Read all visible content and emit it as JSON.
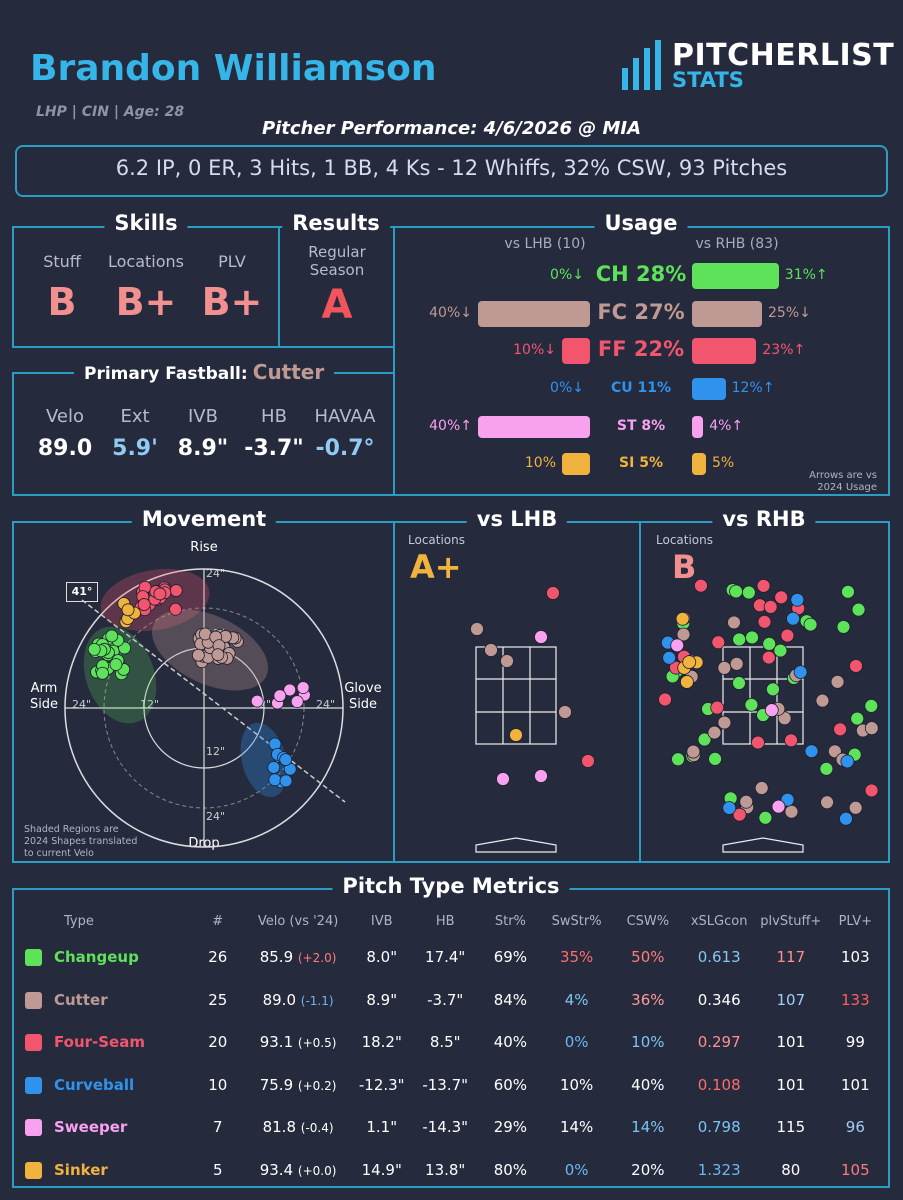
{
  "header": {
    "player_name": "Brandon Williamson",
    "bio": "LHP | CIN | Age: 28",
    "logo_top": "PITCHERLIST",
    "logo_bottom": "STATS",
    "game_title": "Pitcher Performance: 4/6/2026 @ MIA",
    "game_line": "6.2 IP, 0 ER, 3 Hits, 1 BB, 4 Ks - 12 Whiffs, 32% CSW, 93 Pitches"
  },
  "skills": {
    "title": "Skills",
    "items": [
      {
        "label": "Stuff",
        "grade": "B"
      },
      {
        "label": "Locations",
        "grade": "B+"
      },
      {
        "label": "PLV",
        "grade": "B+"
      }
    ]
  },
  "results": {
    "title": "Results",
    "label_line1": "Regular",
    "label_line2": "Season",
    "grade": "A"
  },
  "fastball": {
    "title": "Primary Fastball:",
    "type": "Cutter",
    "metrics": [
      {
        "label": "Velo",
        "value": "89.0"
      },
      {
        "label": "Ext",
        "value": "5.9'"
      },
      {
        "label": "IVB",
        "value": "8.9\""
      },
      {
        "label": "HB",
        "value": "-3.7\""
      },
      {
        "label": "HAVAA",
        "value": "-0.7°"
      }
    ]
  },
  "usage": {
    "title": "Usage",
    "lhb_header": "vs LHB (10)",
    "rhb_header": "vs RHB (83)",
    "note_line1": "Arrows are vs",
    "note_line2": "2024 Usage",
    "rows": [
      {
        "label": "CH 28%",
        "lhb": 0,
        "lhb_text": "0%↓",
        "rhb": 31,
        "rhb_text": "31%↑",
        "color": "#5ee25a"
      },
      {
        "label": "FC 27%",
        "lhb": 40,
        "lhb_text": "40%↓",
        "rhb": 25,
        "rhb_text": "25%↓",
        "color": "#bf9a94"
      },
      {
        "label": "FF 22%",
        "lhb": 10,
        "lhb_text": "10%↓",
        "rhb": 23,
        "rhb_text": "23%↑",
        "color": "#f2566e"
      },
      {
        "label": "CU 11%",
        "lhb": 0,
        "lhb_text": "0%↓",
        "rhb": 12,
        "rhb_text": "12%↑",
        "color": "#2f93ee"
      },
      {
        "label": "ST 8%",
        "lhb": 40,
        "lhb_text": "40%↑",
        "rhb": 4,
        "rhb_text": "4%↑",
        "color": "#f7a1ef"
      },
      {
        "label": "SI 5%",
        "lhb": 10,
        "lhb_text": "10%",
        "rhb": 5,
        "rhb_text": "5%",
        "color": "#f0b33d"
      }
    ]
  },
  "movement": {
    "title": "Movement",
    "rise": "Rise",
    "drop": "Drop",
    "arm_line1": "Arm",
    "arm_line2": "Side",
    "glove_line1": "Glove",
    "glove_line2": "Side",
    "ring_labels": [
      "24\"",
      "12\"",
      "12\"",
      "24\"",
      "12\"",
      "24\"",
      "12\"",
      "24\""
    ],
    "angle_label": "41°",
    "note_line1": "Shaded Regions are",
    "note_line2": "2024 Shapes translated",
    "note_line3": "to current Velo"
  },
  "vs_lhb": {
    "title": "vs LHB",
    "loc_label": "Locations",
    "grade": "A+"
  },
  "vs_rhb": {
    "title": "vs RHB",
    "loc_label": "Locations",
    "grade": "B"
  },
  "metrics": {
    "title": "Pitch Type Metrics",
    "headers": [
      "Type",
      "#",
      "Velo (vs '24)",
      "IVB",
      "HB",
      "Str%",
      "SwStr%",
      "CSW%",
      "xSLGcon",
      "plvStuff+",
      "PLV+"
    ],
    "rows": [
      {
        "type": "Changeup",
        "color": "#5ee25a",
        "n": "26",
        "velo": "85.9",
        "velo_diff": "(+2.0)",
        "velo_diff_color": "#ff7b7b",
        "ivb": "8.0\"",
        "hb": "17.4\"",
        "str": "69%",
        "str_color": "#ffffff",
        "swstr": "35%",
        "swstr_color": "#ff6d6d",
        "csw": "50%",
        "csw_color": "#ff7b7b",
        "xslg": "0.613",
        "xslg_color": "#85c6f2",
        "stuff": "117",
        "stuff_color": "#ff8f8f",
        "plv": "103",
        "plv_color": "#ffffff"
      },
      {
        "type": "Cutter",
        "color": "#bf9a94",
        "n": "25",
        "velo": "89.0",
        "velo_diff": "(-1.1)",
        "velo_diff_color": "#6cb7f0",
        "ivb": "8.9\"",
        "hb": "-3.7\"",
        "str": "84%",
        "str_color": "#ffffff",
        "swstr": "4%",
        "swstr_color": "#7cc4f2",
        "csw": "36%",
        "csw_color": "#ff9a9a",
        "xslg": "0.346",
        "xslg_color": "#ffffff",
        "stuff": "107",
        "stuff_color": "#9fd0f4",
        "plv": "133",
        "plv_color": "#ff5c5c"
      },
      {
        "type": "Four-Seam",
        "color": "#f2566e",
        "n": "20",
        "velo": "93.1",
        "velo_diff": "(+0.5)",
        "velo_diff_color": "#ffffff",
        "ivb": "18.2\"",
        "hb": "8.5\"",
        "str": "40%",
        "str_color": "#ffffff",
        "swstr": "0%",
        "swstr_color": "#6cb7f0",
        "csw": "10%",
        "csw_color": "#7cc4f2",
        "xslg": "0.297",
        "xslg_color": "#ff8f8f",
        "stuff": "101",
        "stuff_color": "#ffffff",
        "plv": "99",
        "plv_color": "#ffffff"
      },
      {
        "type": "Curveball",
        "color": "#2f93ee",
        "n": "10",
        "velo": "75.9",
        "velo_diff": "(+0.2)",
        "velo_diff_color": "#ffffff",
        "ivb": "-12.3\"",
        "hb": "-13.7\"",
        "str": "60%",
        "str_color": "#ffffff",
        "swstr": "10%",
        "swstr_color": "#ffffff",
        "csw": "40%",
        "csw_color": "#ffffff",
        "xslg": "0.108",
        "xslg_color": "#ff6d6d",
        "stuff": "101",
        "stuff_color": "#ffffff",
        "plv": "101",
        "plv_color": "#ffffff"
      },
      {
        "type": "Sweeper",
        "color": "#f7a1ef",
        "n": "7",
        "velo": "81.8",
        "velo_diff": "(-0.4)",
        "velo_diff_color": "#ffffff",
        "ivb": "1.1\"",
        "hb": "-14.3\"",
        "str": "29%",
        "str_color": "#ffffff",
        "swstr": "14%",
        "swstr_color": "#ffffff",
        "csw": "14%",
        "csw_color": "#7cc4f2",
        "xslg": "0.798",
        "xslg_color": "#7cc4f2",
        "stuff": "115",
        "stuff_color": "#ffffff",
        "plv": "96",
        "plv_color": "#9fd0f4"
      },
      {
        "type": "Sinker",
        "color": "#f0b33d",
        "n": "5",
        "velo": "93.4",
        "velo_diff": "(+0.0)",
        "velo_diff_color": "#ffffff",
        "ivb": "14.9\"",
        "hb": "13.8\"",
        "str": "80%",
        "str_color": "#ffffff",
        "swstr": "0%",
        "swstr_color": "#6cb7f0",
        "csw": "20%",
        "csw_color": "#ffffff",
        "xslg": "1.323",
        "xslg_color": "#6cb7f0",
        "stuff": "80",
        "stuff_color": "#ffffff",
        "plv": "105",
        "plv_color": "#ff7b7b"
      }
    ]
  },
  "colors": {
    "accent": "#2b9cc4",
    "background": "#262a3d",
    "grade_red": "#f28f8f"
  }
}
